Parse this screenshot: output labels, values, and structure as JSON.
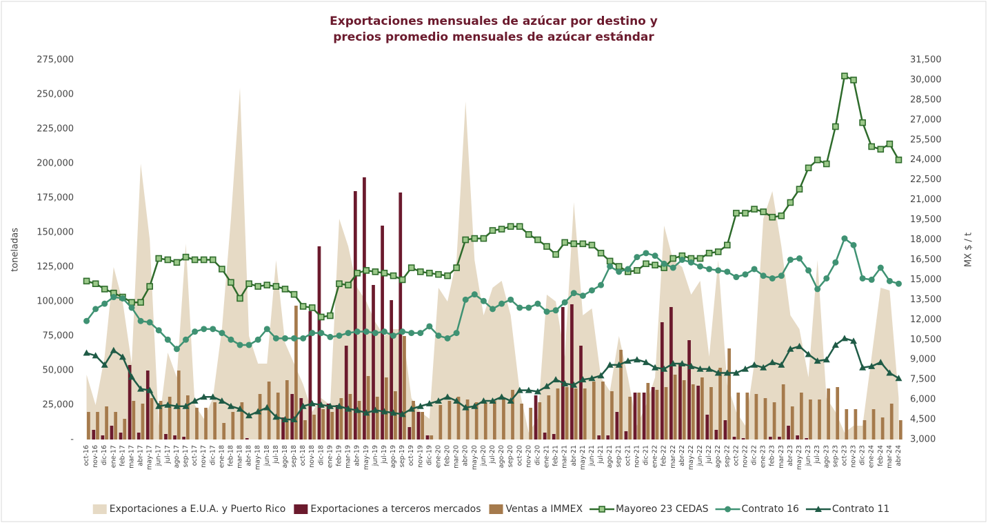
{
  "chart_data": {
    "type": "combo",
    "title": [
      "Exportaciones mensuales de azúcar por destino y",
      "precios promedio mensuales de azúcar estándar"
    ],
    "y_label": "toneladas",
    "y2_label": "MX $ / t",
    "categories": [
      "oct-16",
      "nov-16",
      "dic-16",
      "ene-17",
      "feb-17",
      "mar-17",
      "abr-17",
      "may-17",
      "jun-17",
      "jul-17",
      "ago-17",
      "sep-17",
      "oct-17",
      "nov-17",
      "dic-17",
      "ene-18",
      "feb-18",
      "mar-18",
      "abr-18",
      "may-18",
      "jun-18",
      "jul-18",
      "ago-18",
      "sep-18",
      "oct-18",
      "nov-18",
      "dic-18",
      "ene-19",
      "feb-19",
      "mar-19",
      "abr-19",
      "may-19",
      "jun-19",
      "jul-19",
      "ago-19",
      "sep-19",
      "oct-19",
      "nov-19",
      "dic-19",
      "ene-20",
      "feb-20",
      "mar-20",
      "abr-20",
      "may-20",
      "jun-20",
      "jul-20",
      "ago-20",
      "sep-20",
      "oct-20",
      "nov-20",
      "dic-20",
      "ene-21",
      "feb-21",
      "mar-21",
      "abr-21",
      "may-21",
      "jun-21",
      "jul-21",
      "ago-21",
      "sep-21",
      "oct-21",
      "nov-21",
      "dic-21",
      "ene-22",
      "feb-22",
      "mar-22",
      "abr-22",
      "may-22",
      "jun-22",
      "jul-22",
      "ago-22",
      "sep-22",
      "oct-22",
      "nov-22",
      "dic-22",
      "ene-23",
      "feb-23",
      "mar-23",
      "abr-23",
      "may-23",
      "jun-23",
      "jul-23",
      "ago-23",
      "sep-23",
      "oct-23",
      "nov-23",
      "dic-23",
      "ene-24",
      "feb-24",
      "mar-24",
      "abr-24"
    ],
    "series": [
      {
        "name": "Exportaciones a E.U.A. y Puerto Rico",
        "type": "area",
        "color": "#e6dac5",
        "values": [
          47000,
          25000,
          60000,
          125000,
          100000,
          55000,
          200000,
          145000,
          10000,
          63000,
          45000,
          142000,
          25000,
          15000,
          30000,
          80000,
          160000,
          255000,
          75000,
          55000,
          55000,
          130000,
          70000,
          55000,
          40000,
          20000,
          30000,
          25000,
          160000,
          140000,
          110000,
          100000,
          85000,
          75000,
          80000,
          80000,
          30000,
          20000,
          15000,
          110000,
          100000,
          130000,
          245000,
          130000,
          90000,
          110000,
          115000,
          90000,
          35000,
          5000,
          15000,
          105000,
          100000,
          60000,
          172000,
          90000,
          95000,
          45000,
          35000,
          75000,
          45000,
          10000,
          25000,
          45000,
          155000,
          130000,
          125000,
          105000,
          115000,
          60000,
          130000,
          40000,
          20000,
          10000,
          55000,
          160000,
          180000,
          140000,
          90000,
          80000,
          45000,
          130000,
          30000,
          20000,
          5000,
          10000,
          10000,
          60000,
          110000,
          108000,
          30000
        ]
      },
      {
        "name": "Exportaciones a terceros mercados",
        "type": "bar",
        "color": "#6b1a2d",
        "values": [
          0,
          7000,
          3000,
          10000,
          5000,
          54000,
          5000,
          50000,
          0,
          4000,
          3000,
          2000,
          0,
          0,
          0,
          0,
          0,
          0,
          1000,
          0,
          0,
          0,
          16000,
          33000,
          30000,
          93000,
          140000,
          26000,
          25000,
          68000,
          180000,
          190000,
          112000,
          155000,
          101000,
          179000,
          9000,
          20000,
          3000,
          0,
          0,
          0,
          0,
          0,
          0,
          0,
          0,
          0,
          0,
          0,
          32000,
          5000,
          4000,
          96000,
          98000,
          68000,
          0,
          3000,
          3000,
          20000,
          6000,
          34000,
          34000,
          38000,
          85000,
          96000,
          55000,
          72000,
          39000,
          18000,
          7000,
          14000,
          2000,
          1000,
          0,
          0,
          2000,
          2000,
          10000,
          3000,
          1000,
          0,
          0,
          0,
          0,
          0,
          0,
          0,
          0,
          0,
          0
        ]
      },
      {
        "name": "Ventas a IMMEX",
        "type": "bar",
        "color": "#a57a4c",
        "values": [
          20000,
          20000,
          24000,
          20000,
          15000,
          28000,
          26000,
          30000,
          28000,
          31000,
          50000,
          32000,
          23000,
          23000,
          27000,
          12000,
          20000,
          27000,
          0,
          33000,
          42000,
          34000,
          43000,
          97000,
          14000,
          18000,
          22000,
          20000,
          30000,
          33000,
          28000,
          46000,
          31000,
          45000,
          35000,
          75000,
          28000,
          20000,
          3000,
          25000,
          28000,
          31000,
          29000,
          27000,
          27000,
          28000,
          30000,
          36000,
          26000,
          23000,
          27000,
          32000,
          37000,
          38000,
          37000,
          37000,
          42000,
          42000,
          35000,
          65000,
          31000,
          34000,
          41000,
          36000,
          38000,
          47000,
          43000,
          40000,
          45000,
          38000,
          52000,
          66000,
          34000,
          34000,
          33000,
          30000,
          27000,
          40000,
          24000,
          34000,
          29000,
          29000,
          37000,
          38000,
          22000,
          22000,
          14000,
          22000,
          16000,
          26000,
          14000
        ]
      },
      {
        "name": "Mayoreo 23 CEDAS",
        "type": "line",
        "axis": "y2",
        "marker": "square",
        "color": "#2e6b2b",
        "values": [
          14900,
          14700,
          14300,
          14000,
          13700,
          13300,
          13300,
          14500,
          16600,
          16500,
          16300,
          16700,
          16500,
          16500,
          16500,
          15800,
          14800,
          13600,
          14700,
          14500,
          14600,
          14500,
          14300,
          13900,
          13000,
          12900,
          12200,
          12300,
          14700,
          14600,
          15500,
          15700,
          15600,
          15500,
          15300,
          15000,
          15900,
          15600,
          15500,
          15400,
          15300,
          15900,
          18000,
          18100,
          18100,
          18700,
          18800,
          19000,
          19000,
          18400,
          18000,
          17500,
          16900,
          17800,
          17700,
          17700,
          17600,
          17000,
          16400,
          16000,
          15600,
          15700,
          16200,
          16100,
          15900,
          16600,
          16800,
          16600,
          16600,
          17000,
          17100,
          17600,
          20000,
          20000,
          20300,
          20100,
          19700,
          19800,
          20800,
          21800,
          23400,
          24000,
          23700,
          26500,
          30300,
          30000,
          26800,
          25000,
          24800,
          25200,
          24000
        ]
      },
      {
        "name": "Contrato 16",
        "type": "line",
        "axis": "y2",
        "marker": "circle",
        "color": "#3f9273",
        "values": [
          11900,
          12800,
          13200,
          13700,
          13600,
          12900,
          11900,
          11800,
          11200,
          10500,
          9800,
          10500,
          11100,
          11300,
          11300,
          11000,
          10500,
          10100,
          10100,
          10500,
          11300,
          10600,
          10600,
          10600,
          10600,
          11000,
          11000,
          10700,
          10800,
          11000,
          11100,
          11100,
          11000,
          11100,
          10800,
          11100,
          11000,
          11000,
          11500,
          10800,
          10600,
          11000,
          13500,
          13900,
          13400,
          12800,
          13200,
          13500,
          12900,
          12900,
          13200,
          12600,
          12700,
          13300,
          14000,
          13800,
          14200,
          14600,
          16000,
          15600,
          15800,
          16700,
          17000,
          16800,
          16200,
          15900,
          16500,
          16300,
          16000,
          15800,
          15700,
          15600,
          15200,
          15400,
          15800,
          15300,
          15100,
          15300,
          16500,
          16600,
          15700,
          14300,
          15100,
          16300,
          18100,
          17600,
          15100,
          15000,
          15900,
          14900,
          14700
        ]
      },
      {
        "name": "Contrato 11",
        "type": "line",
        "axis": "y2",
        "marker": "triangle",
        "color": "#1f5b46",
        "values": [
          9500,
          9300,
          8600,
          9700,
          9200,
          7700,
          6800,
          6700,
          5500,
          5600,
          5500,
          5500,
          5900,
          6200,
          6200,
          5900,
          5500,
          5300,
          4800,
          5100,
          5400,
          4700,
          4500,
          4500,
          5500,
          5700,
          5600,
          5500,
          5500,
          5300,
          5200,
          5000,
          5200,
          5100,
          5000,
          4900,
          5300,
          5500,
          5700,
          5900,
          6200,
          5900,
          5400,
          5500,
          5900,
          5900,
          6200,
          5900,
          6700,
          6700,
          6600,
          7000,
          7500,
          7200,
          7100,
          7500,
          7600,
          7800,
          8600,
          8600,
          8900,
          9000,
          8800,
          8400,
          8300,
          8700,
          8700,
          8500,
          8300,
          8300,
          8000,
          8000,
          8000,
          8300,
          8600,
          8400,
          8800,
          8600,
          9800,
          10000,
          9400,
          8900,
          9000,
          10100,
          10600,
          10400,
          8400,
          8500,
          8800,
          8000,
          7600
        ]
      }
    ],
    "ylim": [
      0,
      275000
    ],
    "yticks": [
      {
        "value": 0,
        "label": "-"
      },
      {
        "value": 25000,
        "label": "25,000"
      },
      {
        "value": 50000,
        "label": "50,000"
      },
      {
        "value": 75000,
        "label": "75,000"
      },
      {
        "value": 100000,
        "label": "100,000"
      },
      {
        "value": 125000,
        "label": "125,000"
      },
      {
        "value": 150000,
        "label": "150,000"
      },
      {
        "value": 175000,
        "label": "175,000"
      },
      {
        "value": 200000,
        "label": "200,000"
      },
      {
        "value": 225000,
        "label": "225,000"
      },
      {
        "value": 250000,
        "label": "250,000"
      },
      {
        "value": 275000,
        "label": "275,000"
      }
    ],
    "y2lim": [
      3000,
      31500
    ],
    "y2ticks": [
      {
        "value": 3000,
        "label": "3,000"
      },
      {
        "value": 4500,
        "label": "4,500"
      },
      {
        "value": 6000,
        "label": "6,000"
      },
      {
        "value": 7500,
        "label": "7,500"
      },
      {
        "value": 9000,
        "label": "9,000"
      },
      {
        "value": 10500,
        "label": "10,500"
      },
      {
        "value": 12000,
        "label": "12,000"
      },
      {
        "value": 13500,
        "label": "13,500"
      },
      {
        "value": 15000,
        "label": "15,000"
      },
      {
        "value": 16500,
        "label": "16,500"
      },
      {
        "value": 18000,
        "label": "18,000"
      },
      {
        "value": 19500,
        "label": "19,500"
      },
      {
        "value": 21000,
        "label": "21,000"
      },
      {
        "value": 22500,
        "label": "22,500"
      },
      {
        "value": 24000,
        "label": "24,000"
      },
      {
        "value": 25500,
        "label": "25,500"
      },
      {
        "value": 27000,
        "label": "27,000"
      },
      {
        "value": 28500,
        "label": "28,500"
      },
      {
        "value": 30000,
        "label": "30,000"
      },
      {
        "value": 31500,
        "label": "31,500"
      }
    ],
    "grid": false,
    "legend": "bottom"
  }
}
